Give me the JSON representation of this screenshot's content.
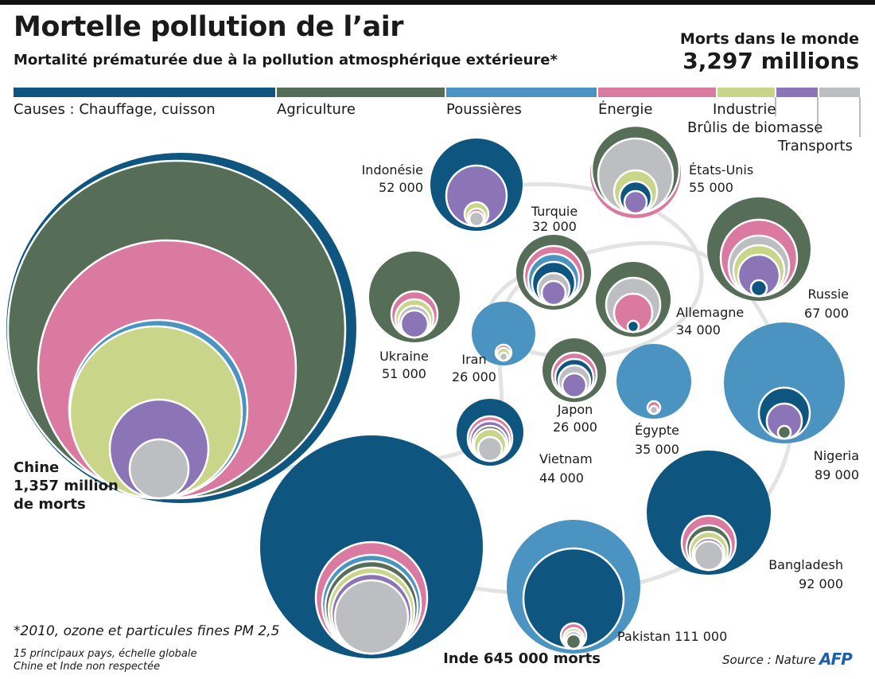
{
  "header": {
    "title": "Mortelle pollution de l’air",
    "subtitle": "Mortalité prématurée due à la pollution atmosphérique extérieure*",
    "total_label": "Morts dans le monde",
    "total_value": "3,297 millions"
  },
  "legend": {
    "prefix": "Causes : ",
    "items": [
      {
        "label": "Chauffage, cuisson",
        "color": "#0e5680"
      },
      {
        "label": "Agriculture",
        "color": "#566e58"
      },
      {
        "label": "Poussières",
        "color": "#4b93c0"
      },
      {
        "label": "Énergie",
        "color": "#da7aa0"
      },
      {
        "label": "Industrie",
        "color": "#c9d588"
      },
      {
        "label": "Brûlis de biomasse",
        "color": "#8b75b6"
      },
      {
        "label": "Transports",
        "color": "#bdbec1"
      }
    ]
  },
  "footer": {
    "note": "*2010, ozone et particules fines PM 2,5",
    "scale_note_1": "15 principaux pays, échelle globale",
    "scale_note_2": "Chine et Inde non respectée",
    "source": "Source : Nature",
    "agency": "AFP"
  },
  "chart_data": {
    "type": "nested-bubble",
    "unit": "morts",
    "countries": [
      {
        "name": "Chine",
        "deaths": 1357000,
        "label_lines": [
          "Chine",
          "1,357 million",
          "de morts"
        ],
        "rings": [
          "Chauffage, cuisson",
          "Agriculture",
          "Énergie",
          "Poussières",
          "Industrie",
          "Brûlis de biomasse",
          "Transports"
        ]
      },
      {
        "name": "Inde",
        "deaths": 645000,
        "label_lines": [
          "Inde 645 000 morts"
        ],
        "rings": [
          "Chauffage, cuisson",
          "Énergie",
          "Poussières",
          "Agriculture",
          "Industrie",
          "Brûlis de biomasse",
          "Transports"
        ]
      },
      {
        "name": "Pakistan",
        "deaths": 111000,
        "label_lines": [
          "Pakistan  111 000"
        ],
        "rings": [
          "Poussières",
          "Chauffage, cuisson",
          "Énergie",
          "Industrie",
          "Transports",
          "Agriculture"
        ]
      },
      {
        "name": "Bangladesh",
        "deaths": 92000,
        "label_lines": [
          "Bangladesh",
          "92 000"
        ],
        "rings": [
          "Chauffage, cuisson",
          "Énergie",
          "Agriculture",
          "Industrie",
          "Brûlis de biomasse",
          "Transports"
        ]
      },
      {
        "name": "Nigeria",
        "deaths": 89000,
        "label_lines": [
          "Nigeria",
          "89 000"
        ],
        "rings": [
          "Poussières",
          "Chauffage, cuisson",
          "Brûlis de biomasse",
          "Agriculture"
        ]
      },
      {
        "name": "Russie",
        "deaths": 67000,
        "label_lines": [
          "Russie",
          "67 000"
        ],
        "rings": [
          "Agriculture",
          "Énergie",
          "Transports",
          "Industrie",
          "Brûlis de biomasse",
          "Chauffage, cuisson"
        ]
      },
      {
        "name": "États-Unis",
        "deaths": 55000,
        "label_lines": [
          "États-Unis",
          "55 000"
        ],
        "rings": [
          "Énergie",
          "Agriculture",
          "Transports",
          "Industrie",
          "Chauffage, cuisson",
          "Brûlis de biomasse"
        ]
      },
      {
        "name": "Indonésie",
        "deaths": 52000,
        "label_lines": [
          "Indonésie",
          "52 000"
        ],
        "rings": [
          "Chauffage, cuisson",
          "Brûlis de biomasse",
          "Industrie",
          "Énergie",
          "Transports"
        ]
      },
      {
        "name": "Ukraine",
        "deaths": 51000,
        "label_lines": [
          "Ukraine",
          "51 000"
        ],
        "rings": [
          "Agriculture",
          "Énergie",
          "Industrie",
          "Transports",
          "Brûlis de biomasse"
        ]
      },
      {
        "name": "Vietnam",
        "deaths": 44000,
        "label_lines": [
          "Vietnam",
          "44 000"
        ],
        "rings": [
          "Chauffage, cuisson",
          "Énergie",
          "Brûlis de biomasse",
          "Agriculture",
          "Industrie",
          "Transports"
        ]
      },
      {
        "name": "Égypte",
        "deaths": 35000,
        "label_lines": [
          "Égypte",
          "35 000"
        ],
        "rings": [
          "Poussières",
          "Énergie",
          "Transports"
        ]
      },
      {
        "name": "Allemagne",
        "deaths": 34000,
        "label_lines": [
          "Allemagne",
          "34 000"
        ],
        "rings": [
          "Agriculture",
          "Transports",
          "Énergie",
          "Chauffage, cuisson"
        ]
      },
      {
        "name": "Turquie",
        "deaths": 32000,
        "label_lines": [
          "Turquie",
          "32 000"
        ],
        "rings": [
          "Agriculture",
          "Énergie",
          "Poussières",
          "Chauffage, cuisson",
          "Transports",
          "Brûlis de biomasse"
        ]
      },
      {
        "name": "Iran",
        "deaths": 26000,
        "label_lines": [
          "Iran",
          "26 000"
        ],
        "rings": [
          "Poussières",
          "Énergie",
          "Industrie",
          "Transports"
        ]
      },
      {
        "name": "Japon",
        "deaths": 26000,
        "label_lines": [
          "Japon",
          "26 000"
        ],
        "rings": [
          "Agriculture",
          "Énergie",
          "Chauffage, cuisson",
          "Transports",
          "Brûlis de biomasse"
        ]
      }
    ]
  }
}
